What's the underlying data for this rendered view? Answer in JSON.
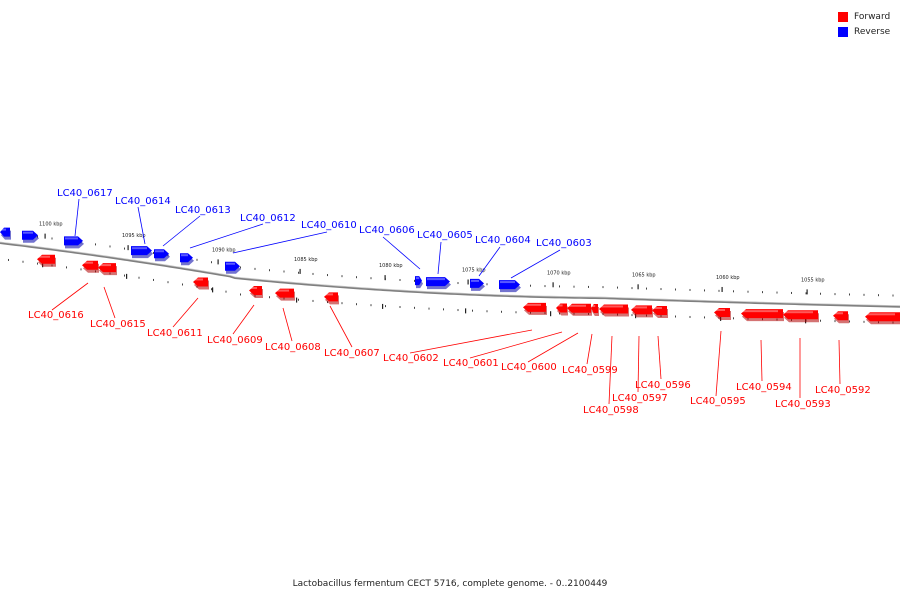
{
  "legend": {
    "forward_label": "Forward",
    "reverse_label": "Reverse",
    "forward_color": "#ff0000",
    "reverse_color": "#0000ff"
  },
  "caption": "Lactobacillus fermentum CECT 5716, complete genome. - 0..2100449",
  "backbone_color": "#808080",
  "ticks": [
    "1100 kbp",
    "1095 kbp",
    "1090 kbp",
    "1085 kbp",
    "1080 kbp",
    "1075 kbp",
    "1070 kbp",
    "1065 kbp",
    "1060 kbp",
    "1055 kbp"
  ],
  "reverse_genes": [
    "LC40_0617",
    "LC40_0614",
    "LC40_0613",
    "LC40_0612",
    "LC40_0610",
    "LC40_0606",
    "LC40_0605",
    "LC40_0604",
    "LC40_0603"
  ],
  "forward_genes": [
    "LC40_0616",
    "LC40_0615",
    "LC40_0611",
    "LC40_0609",
    "LC40_0608",
    "LC40_0607",
    "LC40_0602",
    "LC40_0601",
    "LC40_0600",
    "LC40_0599",
    "LC40_0598",
    "LC40_0597",
    "LC40_0596",
    "LC40_0595",
    "LC40_0594",
    "LC40_0593",
    "LC40_0592"
  ]
}
